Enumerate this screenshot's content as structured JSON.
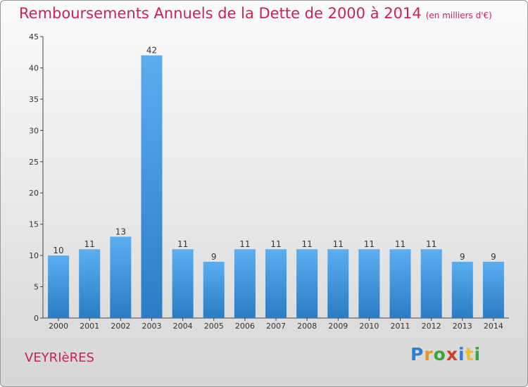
{
  "title": "Remboursements Annuels de la Dette de 2000 à 2014",
  "subtitle": "(en milliers d'€)",
  "commune": "VEYRIèRES",
  "logo": {
    "letters": [
      {
        "char": "P",
        "color": "#2a7fd4"
      },
      {
        "char": "r",
        "color": "#e8932a"
      },
      {
        "char": "o",
        "color": "#3aa53a"
      },
      {
        "char": "x",
        "color": "#d43a2a"
      },
      {
        "char": "i",
        "color": "#2a7fd4"
      },
      {
        "char": "t",
        "color": "#e8c02a"
      },
      {
        "char": "i",
        "color": "#3aa53a"
      }
    ]
  },
  "colors": {
    "accent": "#c8225a",
    "bar_top": "#5aaef0",
    "bar_bottom": "#2a7cc4"
  },
  "chart_data": {
    "type": "bar",
    "categories": [
      "2000",
      "2001",
      "2002",
      "2003",
      "2004",
      "2005",
      "2006",
      "2007",
      "2008",
      "2009",
      "2010",
      "2011",
      "2012",
      "2013",
      "2014"
    ],
    "values": [
      10,
      11,
      13,
      42,
      11,
      9,
      11,
      11,
      11,
      11,
      11,
      11,
      11,
      9,
      9
    ],
    "data_labels": [
      "10",
      "11",
      "13",
      "42",
      "11",
      "9",
      "11",
      "11",
      "11",
      "11",
      "11",
      "11",
      "11",
      "9",
      "9"
    ],
    "yticks": [
      "0",
      "5",
      "10",
      "15",
      "20",
      "25",
      "30",
      "35",
      "40",
      "45"
    ],
    "ylim": [
      0,
      45
    ],
    "grid": false
  }
}
